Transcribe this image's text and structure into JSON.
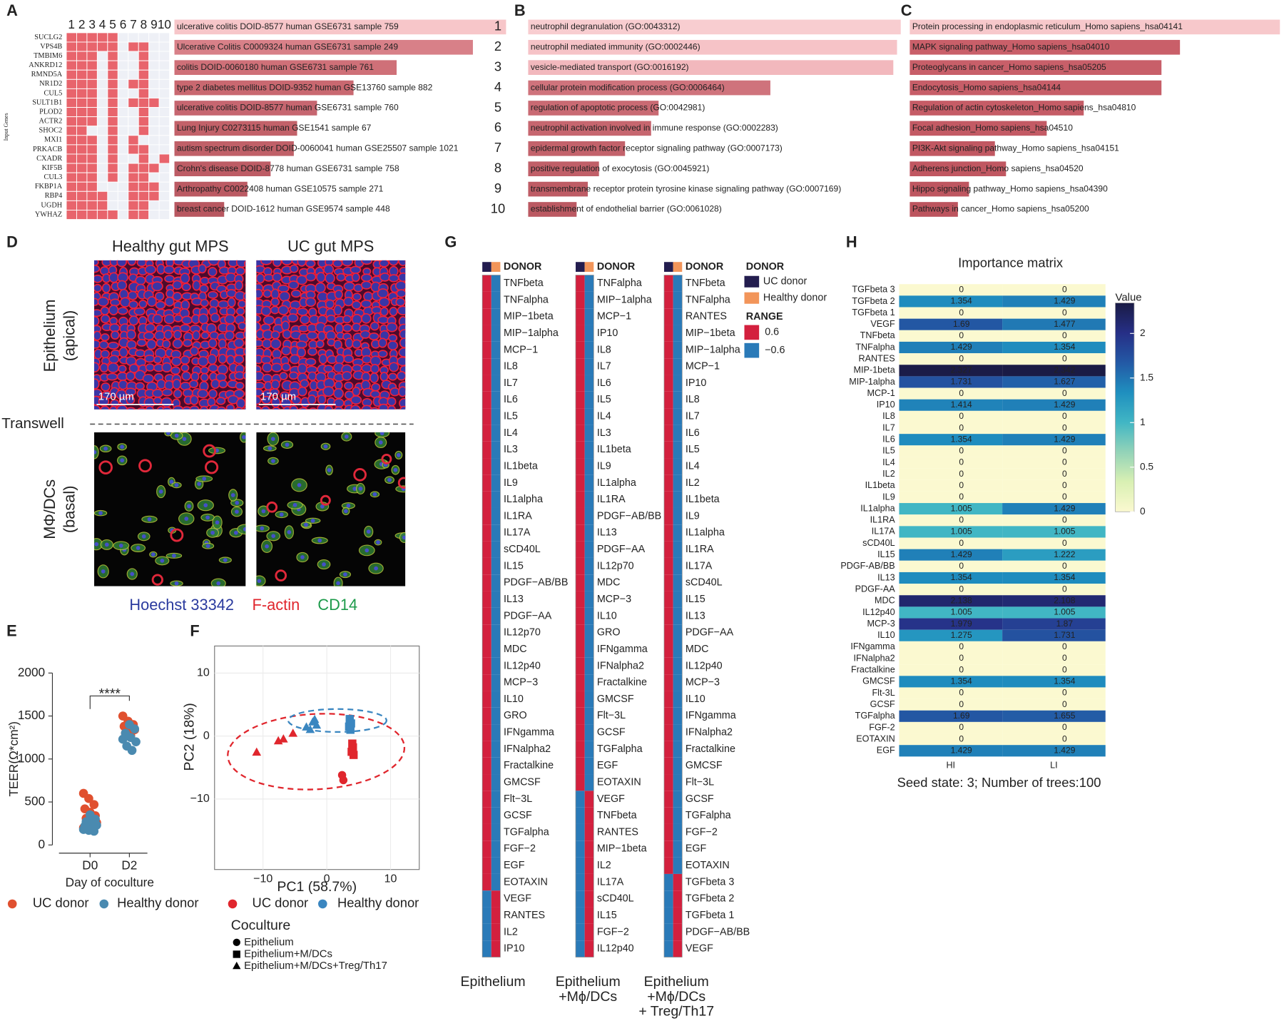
{
  "panel_labels": [
    "A",
    "B",
    "C",
    "D",
    "E",
    "F",
    "G",
    "H"
  ],
  "panel_a": {
    "y_axis_label": "Input Genes",
    "columns": [
      1,
      2,
      3,
      4,
      5,
      6,
      7,
      8,
      9,
      10
    ],
    "genes": [
      "SUCLG2",
      "VPS4B",
      "TMBIM6",
      "ANKRD12",
      "RMND5A",
      "NR1D2",
      "CUL5",
      "SULT1B1",
      "PLOD2",
      "ACTR2",
      "SHOC2",
      "MXI1",
      "PRKACB",
      "CXADR",
      "KIF5B",
      "CUL3",
      "FKBP1A",
      "RBP4",
      "UGDH",
      "YWHAZ"
    ],
    "matrix": [
      [
        1,
        1,
        1,
        1,
        1,
        0,
        0,
        0,
        0,
        0
      ],
      [
        1,
        1,
        1,
        1,
        1,
        0,
        1,
        1,
        0,
        0
      ],
      [
        1,
        1,
        1,
        0,
        1,
        0,
        0,
        1,
        0,
        0
      ],
      [
        1,
        1,
        1,
        0,
        1,
        0,
        0,
        1,
        0,
        0
      ],
      [
        1,
        1,
        1,
        0,
        1,
        0,
        0,
        1,
        0,
        0
      ],
      [
        1,
        1,
        1,
        0,
        1,
        0,
        1,
        1,
        0,
        0
      ],
      [
        1,
        1,
        1,
        0,
        1,
        0,
        0,
        1,
        0,
        0
      ],
      [
        1,
        1,
        1,
        0,
        1,
        0,
        1,
        1,
        1,
        0
      ],
      [
        1,
        1,
        1,
        0,
        1,
        0,
        0,
        1,
        0,
        0
      ],
      [
        1,
        1,
        1,
        0,
        1,
        0,
        0,
        1,
        0,
        0
      ],
      [
        1,
        1,
        0,
        0,
        1,
        0,
        0,
        1,
        0,
        0
      ],
      [
        1,
        1,
        1,
        0,
        1,
        0,
        1,
        0,
        0,
        0
      ],
      [
        1,
        1,
        1,
        0,
        1,
        0,
        1,
        1,
        0,
        0
      ],
      [
        1,
        1,
        1,
        0,
        1,
        0,
        0,
        1,
        0,
        1
      ],
      [
        1,
        1,
        1,
        0,
        1,
        0,
        1,
        1,
        1,
        0
      ],
      [
        1,
        1,
        1,
        0,
        1,
        0,
        1,
        1,
        0,
        0
      ],
      [
        1,
        1,
        1,
        0,
        0,
        0,
        1,
        1,
        1,
        0
      ],
      [
        1,
        1,
        1,
        1,
        0,
        0,
        1,
        1,
        1,
        0
      ],
      [
        1,
        1,
        1,
        1,
        0,
        0,
        1,
        1,
        0,
        0
      ],
      [
        1,
        1,
        1,
        1,
        1,
        0,
        1,
        1,
        0,
        0
      ]
    ],
    "color": "#e8646c",
    "empty_color": "#eef0f6"
  },
  "panel_a_terms": {
    "xlim": [
      0,
      100
    ],
    "ranks": [
      1,
      2,
      3,
      4,
      5,
      6,
      7,
      8,
      9,
      10
    ],
    "labels": [
      "ulcerative colitis DOID-8577 human GSE6731 sample 759",
      "Ulcerative Colitis C0009324 human GSE6731 sample 249",
      "colitis DOID-0060180 human GSE6731 sample 761",
      "type 2 diabetes mellitus DOID-9352 human GSE13760 sample 882",
      "ulcerative colitis DOID-8577 human GSE6731 sample 760",
      "Lung Injury C0273115 human GSE1541 sample 67",
      "autism spectrum disorder DOID-0060041 human GSE25507 sample 1021",
      "Crohn's disease DOID-8778 human GSE6731 sample 758",
      "Arthropathy C0022408 human GSE10575 sample 271",
      "breast cancer DOID-1612 human GSE9574 sample 448"
    ],
    "values": [
      100,
      90,
      67,
      54,
      43,
      37,
      36,
      29,
      22,
      15
    ],
    "colors": [
      "#f7c6c9",
      "#d88088",
      "#cf7078",
      "#c96870",
      "#c66670",
      "#c26169",
      "#c06068",
      "#bd5c65",
      "#bb5a63",
      "#b85760"
    ]
  },
  "panel_b": {
    "xlim": [
      0,
      100
    ],
    "labels": [
      "neutrophil degranulation (GO:0043312)",
      "neutrophil mediated immunity (GO:0002446)",
      "vesicle-mediated transport (GO:0016192)",
      "cellular protein modification process (GO:0006464)",
      "regulation of apoptotic process (GO:0042981)",
      "neutrophil activation involved in immune response (GO:0002283)",
      "epidermal growth factor receptor signaling pathway (GO:0007173)",
      "positive regulation of exocytosis (GO:0045921)",
      "transmembrane receptor protein tyrosine kinase signaling pathway (GO:0007169)",
      "establishment of endothelial barrier (GO:0061028)"
    ],
    "values": [
      100,
      99,
      98,
      65,
      35,
      33,
      26,
      19,
      16,
      13
    ],
    "colors": [
      "#f8cdd0",
      "#f6c3c7",
      "#f2b8bd",
      "#cf737c",
      "#c96a73",
      "#c6666f",
      "#c3626b",
      "#c05f68",
      "#be5c65",
      "#bb5962"
    ]
  },
  "panel_c": {
    "xlim": [
      0,
      100
    ],
    "labels": [
      "Protein processing in endoplasmic reticulum_Homo sapiens_hsa04141",
      "MAPK signaling pathway_Homo sapiens_hsa04010",
      "Proteoglycans in cancer_Homo sapiens_hsa05205",
      "Endocytosis_Homo sapiens_hsa04144",
      "Regulation of actin cytoskeleton_Homo sapiens_hsa04810",
      "Focal adhesion_Homo sapiens_hsa04510",
      "PI3K-Akt signaling pathway_Homo sapiens_hsa04151",
      "Adherens junction_Homo sapiens_hsa04520",
      "Hippo signaling pathway_Homo sapiens_hsa04390",
      "Pathways in cancer_Homo sapiens_hsa05200"
    ],
    "values": [
      100,
      73,
      68,
      68,
      47,
      37,
      23,
      26,
      16,
      13
    ],
    "colors": [
      "#f7c8cb",
      "#c95f69",
      "#c85f69",
      "#c75e68",
      "#c55c66",
      "#c35a64",
      "#c15862",
      "#c05761",
      "#be5660",
      "#bc545e"
    ]
  },
  "panel_d": {
    "column_titles": [
      "Healthy gut MPS",
      "UC gut MPS"
    ],
    "row_labels": [
      [
        "Epithelium",
        "(apical)"
      ],
      [
        "MΦ/DCs",
        "(basal)"
      ]
    ],
    "separator_label": "Transwell",
    "scale_bars": [
      "170 µm",
      "170 µm"
    ],
    "stains": [
      {
        "name": "Hoechst 33342",
        "color": "#2a3a9e"
      },
      {
        "name": "F-actin",
        "color": "#e0262d"
      },
      {
        "name": "CD14",
        "color": "#1c9a4a"
      }
    ]
  },
  "panel_e": {
    "type": "strip",
    "categories": [
      "D0",
      "D2"
    ],
    "ylabel": "TEER(Ω*cm²)",
    "xlabel": "Day of coculture",
    "ylim": [
      0,
      2000
    ],
    "yticks": [
      0,
      500,
      1000,
      1500,
      2000
    ],
    "significance": "****",
    "series": [
      {
        "name": "UC donor",
        "color": "#e0502f",
        "values": [
          [
            600,
            540,
            470,
            420,
            380,
            340,
            310,
            280,
            260,
            240,
            210,
            200
          ],
          [
            1500,
            1440,
            1400,
            1380,
            1360,
            1340,
            1300,
            1270
          ]
        ]
      },
      {
        "name": "Healthy donor",
        "color": "#4a8ab0",
        "values": [
          [
            350,
            300,
            270,
            250,
            230,
            210,
            200,
            180,
            170,
            160,
            220
          ],
          [
            1400,
            1350,
            1300,
            1250,
            1200,
            1150,
            1100,
            1230
          ]
        ]
      }
    ]
  },
  "panel_f": {
    "type": "scatter",
    "xlabel": "PC1 (58.7%)",
    "ylabel": "PC2 (18%)",
    "xlim": [
      -17.6,
      14.5
    ],
    "ylim": [
      -21.2,
      14.3
    ],
    "xticks": [
      {
        "value": -10,
        "label": "−10"
      },
      0,
      10
    ],
    "yticks": [
      {
        "value": -10,
        "label": "−10"
      },
      0,
      10
    ],
    "series": [
      {
        "name": "UC donor",
        "color": "#e0262d",
        "groups": [
          {
            "x": [
              2.4,
              2.6
            ],
            "y": [
              -6.2,
              -7
            ]
          },
          {
            "x": [
              4,
              4.1,
              3.9,
              4.2
            ],
            "y": [
              -1.2,
              -1.8,
              -2.5,
              -3
            ]
          },
          {
            "x": [
              -11,
              -7.6,
              -6.8,
              -5.3
            ],
            "y": [
              -2.6,
              -0.8,
              -0.5,
              0.4
            ]
          }
        ]
      },
      {
        "name": "Healthy donor",
        "color": "#3a86c0",
        "groups": [
          {
            "x": [],
            "y": []
          },
          {
            "x": [
              3.6,
              3.8,
              3.5,
              3.7
            ],
            "y": [
              2.7,
              2,
              1.5,
              1
            ]
          },
          {
            "x": [
              -3.2,
              -2.2,
              -1.6,
              -2.6,
              -1.9
            ],
            "y": [
              1.4,
              2.2,
              1.7,
              1.0,
              2.6
            ]
          }
        ]
      }
    ],
    "shape_legend_title": "Coculture",
    "groups": [
      "Epithelium",
      "Epithelium+M/DCs",
      "Epithelium+M/DCs+Treg/Th17"
    ],
    "markers": [
      "circle",
      "square",
      "triangle"
    ]
  },
  "panel_g": {
    "donor_title": "DONOR",
    "donors": [
      {
        "name": "UC donor",
        "color": "#231d4f"
      },
      {
        "name": "Healthy donor",
        "color": "#f2955a"
      }
    ],
    "range_title": "RANGE",
    "range_values": [
      0.6,
      {
        "value": -0.6,
        "label": "−0.6"
      }
    ],
    "range_colors": [
      "#d3203e",
      "#2a7ab8"
    ],
    "columns": [
      {
        "caption": [
          "Epithelium"
        ],
        "labels": [
          "TNFbeta",
          "TNFalpha",
          "MIP−1beta",
          "MIP−1alpha",
          "MCP−1",
          "IL8",
          "IL7",
          "IL6",
          "IL5",
          "IL4",
          "IL3",
          "IL1beta",
          "IL9",
          "IL1alpha",
          "IL1RA",
          "IL17A",
          "sCD40L",
          "IL15",
          "PDGF−AB/BB",
          "IL13",
          "PDGF−AA",
          "IL12p70",
          "MDC",
          "IL12p40",
          "MCP−3",
          "IL10",
          "GRO",
          "IFNgamma",
          "IFNalpha2",
          "Fractalkine",
          "GMCSF",
          "Flt−3L",
          "GCSF",
          "TGFalpha",
          "FGF−2",
          "EGF",
          "EOTAXIN",
          "VEGF",
          "RANTES",
          "IL2",
          "IP10"
        ],
        "uc": [
          0.6,
          0.6,
          0.6,
          0.6,
          0.6,
          0.6,
          0.6,
          0.6,
          0.6,
          0.6,
          0.6,
          0.6,
          0.6,
          0.6,
          0.6,
          0.6,
          0.6,
          0.6,
          0.6,
          0.6,
          0.6,
          0.6,
          0.6,
          0.6,
          0.6,
          0.6,
          0.6,
          0.6,
          0.6,
          0.6,
          0.6,
          0.6,
          0.6,
          0.6,
          0.6,
          0.6,
          0.6,
          -0.6,
          -0.6,
          -0.6,
          -0.6
        ],
        "healthy": [
          -0.6,
          -0.6,
          -0.6,
          -0.6,
          -0.6,
          -0.6,
          -0.6,
          -0.6,
          -0.6,
          -0.6,
          -0.6,
          -0.6,
          -0.6,
          -0.6,
          -0.6,
          -0.6,
          -0.6,
          -0.6,
          -0.6,
          -0.6,
          -0.6,
          -0.6,
          -0.6,
          -0.6,
          -0.6,
          -0.6,
          -0.6,
          -0.6,
          -0.6,
          -0.6,
          -0.6,
          -0.6,
          -0.6,
          -0.6,
          -0.6,
          -0.6,
          -0.6,
          0.6,
          0.6,
          0.6,
          0.6
        ]
      },
      {
        "caption": [
          "Epithelium",
          "+Mϕ/DCs"
        ],
        "labels": [
          "TNFalpha",
          "MIP−1alpha",
          "MCP−1",
          "IP10",
          "IL8",
          "IL7",
          "IL6",
          "IL5",
          "IL4",
          "IL3",
          "IL1beta",
          "IL9",
          "IL1alpha",
          "IL1RA",
          "PDGF−AB/BB",
          "IL13",
          "PDGF−AA",
          "IL12p70",
          "MDC",
          "MCP−3",
          "IL10",
          "GRO",
          "IFNgamma",
          "IFNalpha2",
          "Fractalkine",
          "GMCSF",
          "Flt−3L",
          "GCSF",
          "TGFalpha",
          "EGF",
          "EOTAXIN",
          "VEGF",
          "TNFbeta",
          "RANTES",
          "MIP−1beta",
          "IL2",
          "IL17A",
          "sCD40L",
          "IL15",
          "FGF−2",
          "IL12p40"
        ],
        "uc": [
          0.6,
          0.6,
          0.6,
          0.6,
          0.6,
          0.6,
          0.6,
          0.6,
          0.6,
          0.6,
          0.6,
          0.6,
          0.6,
          0.6,
          0.6,
          0.6,
          0.6,
          0.6,
          0.6,
          0.6,
          0.6,
          0.6,
          0.6,
          0.6,
          0.6,
          0.6,
          0.6,
          0.6,
          0.6,
          0.6,
          0.6,
          -0.6,
          -0.6,
          -0.6,
          -0.6,
          -0.6,
          -0.6,
          -0.6,
          -0.6,
          -0.6,
          -0.6
        ],
        "healthy": [
          -0.6,
          -0.6,
          -0.6,
          -0.6,
          -0.6,
          -0.6,
          -0.6,
          -0.6,
          -0.6,
          -0.6,
          -0.6,
          -0.6,
          -0.6,
          -0.6,
          -0.6,
          -0.6,
          -0.6,
          -0.6,
          -0.6,
          -0.6,
          -0.6,
          -0.6,
          -0.6,
          -0.6,
          -0.6,
          -0.6,
          -0.6,
          -0.6,
          -0.6,
          -0.6,
          -0.6,
          0.6,
          0.6,
          0.6,
          0.6,
          0.6,
          0.6,
          0.6,
          0.6,
          0.6,
          0.6
        ]
      },
      {
        "caption": [
          "Epithelium",
          "+Mϕ/DCs",
          "+ Treg/Th17"
        ],
        "labels": [
          "TNFbeta",
          "TNFalpha",
          "RANTES",
          "MIP−1beta",
          "MIP−1alpha",
          "MCP−1",
          "IP10",
          "IL8",
          "IL7",
          "IL6",
          "IL5",
          "IL4",
          "IL2",
          "IL1beta",
          "IL9",
          "IL1alpha",
          "IL1RA",
          "IL17A",
          "sCD40L",
          "IL15",
          "IL13",
          "PDGF−AA",
          "MDC",
          "IL12p40",
          "MCP−3",
          "IL10",
          "IFNgamma",
          "IFNalpha2",
          "Fractalkine",
          "GMCSF",
          "Flt−3L",
          "GCSF",
          "TGFalpha",
          "FGF−2",
          "EGF",
          "EOTAXIN",
          "TGFbeta 3",
          "TGFbeta 2",
          "TGFbeta 1",
          "PDGF−AB/BB",
          "VEGF"
        ],
        "uc": [
          0.6,
          0.6,
          0.6,
          0.6,
          0.6,
          0.6,
          0.6,
          0.6,
          0.6,
          0.6,
          0.6,
          0.6,
          0.6,
          0.6,
          0.6,
          0.6,
          0.6,
          0.6,
          0.6,
          0.6,
          0.6,
          0.6,
          0.6,
          0.6,
          0.6,
          0.6,
          0.6,
          0.6,
          0.6,
          0.6,
          0.6,
          0.6,
          0.6,
          0.6,
          0.6,
          0.6,
          -0.6,
          -0.6,
          -0.6,
          -0.6,
          -0.6
        ],
        "healthy": [
          -0.6,
          -0.6,
          -0.6,
          -0.6,
          -0.6,
          -0.6,
          -0.6,
          -0.6,
          -0.6,
          -0.6,
          -0.6,
          -0.6,
          -0.6,
          -0.6,
          -0.6,
          -0.6,
          -0.6,
          -0.6,
          -0.6,
          -0.6,
          -0.6,
          -0.6,
          -0.6,
          -0.6,
          -0.6,
          -0.6,
          -0.6,
          -0.6,
          -0.6,
          -0.6,
          -0.6,
          -0.6,
          -0.6,
          -0.6,
          -0.6,
          -0.6,
          0.6,
          0.6,
          0.6,
          0.6,
          0.6
        ]
      }
    ]
  },
  "panel_h": {
    "title": "Importance matrix",
    "rows": [
      "TGFbeta 3",
      "TGFbeta 2",
      "TGFbeta 1",
      "VEGF",
      "TNFbeta",
      "TNFalpha",
      "RANTES",
      "MIP-1beta",
      "MIP-1alpha",
      "MCP-1",
      "IP10",
      "IL8",
      "IL7",
      "IL6",
      "IL5",
      "IL4",
      "IL2",
      "IL1beta",
      "IL9",
      "IL1alpha",
      "IL1RA",
      "IL17A",
      "sCD40L",
      "IL15",
      "PDGF-AB/BB",
      "IL13",
      "PDGF-AA",
      "MDC",
      "IL12p40",
      "MCP-3",
      "IL10",
      "IFNgamma",
      "IFNalpha2",
      "Fractalkine",
      "GMCSF",
      "Flt-3L",
      "GCSF",
      "TGFalpha",
      "FGF-2",
      "EOTAXIN",
      "EGF"
    ],
    "columns": [
      "HI",
      "LI"
    ],
    "values": [
      [
        0,
        1.354,
        0,
        1.69,
        0,
        1.429,
        0,
        2.327,
        1.731,
        0,
        1.414,
        0,
        0,
        1.354,
        0,
        0,
        0,
        0,
        0,
        1.005,
        0,
        1.005,
        0,
        1.429,
        0,
        1.354,
        0,
        2.138,
        1.005,
        1.979,
        1.275,
        0,
        0,
        0,
        1.354,
        0,
        0,
        1.69,
        0,
        0,
        1.429
      ],
      [
        0,
        1.429,
        0,
        1.477,
        0,
        1.354,
        0,
        2.342,
        1.627,
        0,
        1.429,
        0,
        0,
        1.429,
        0,
        0,
        0,
        0,
        0,
        1.429,
        0,
        1.005,
        0,
        1.222,
        0,
        1.354,
        0,
        2.108,
        1.005,
        1.87,
        1.731,
        0,
        0,
        0,
        1.354,
        0,
        0,
        1.655,
        0,
        0,
        1.429
      ]
    ],
    "colorbar_title": "Value",
    "colorbar_lim": [
      0,
      2.342
    ],
    "colorbar_ticks": [
      0,
      0.5,
      1,
      1.5,
      2
    ],
    "colormap": [
      "#fbf9d0",
      "#d9f0b3",
      "#93d3b8",
      "#41b6c4",
      "#1f8fbf",
      "#2359a5",
      "#262f86",
      "#1a1b45"
    ],
    "footer": "Seed state: 3; Number of trees:100"
  }
}
